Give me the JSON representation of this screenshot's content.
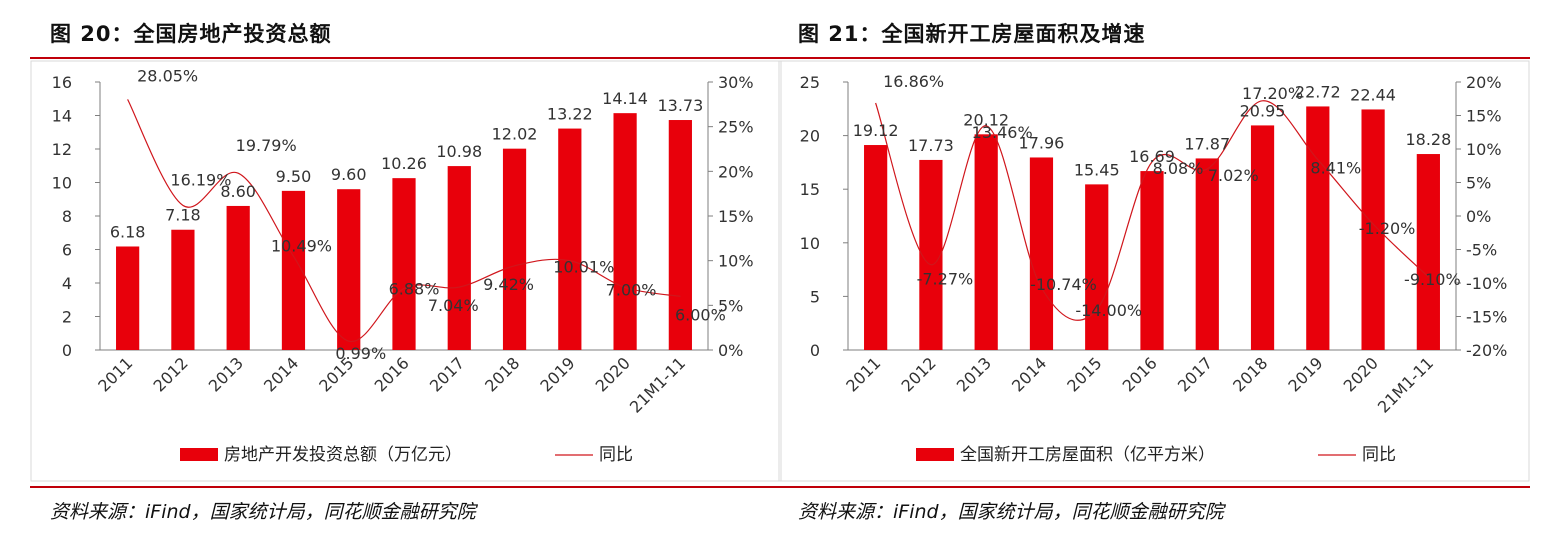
{
  "figures": [
    {
      "title": "图 20：全国房地产投资总额",
      "source": "资料来源：iFind，国家统计局，同花顺金融研究院"
    },
    {
      "title": "图 21：全国新开工房屋面积及增速",
      "source": "资料来源：iFind，国家统计局，同花顺金融研究院"
    }
  ],
  "colors": {
    "bar": "#e8000b",
    "line": "#d0161c",
    "rule": "#c0000a"
  },
  "chart_data": [
    {
      "type": "bar",
      "categories": [
        "2011",
        "2012",
        "2013",
        "2014",
        "2015",
        "2016",
        "2017",
        "2018",
        "2019",
        "2020",
        "21M1-11"
      ],
      "series": [
        {
          "name": "房地产开发投资总额（万亿元）",
          "type": "bar",
          "axis": "left",
          "values": [
            6.18,
            7.18,
            8.6,
            9.5,
            9.6,
            10.26,
            10.98,
            12.02,
            13.22,
            14.14,
            13.73
          ],
          "labels": [
            "6.18",
            "7.18",
            "8.60",
            "9.50",
            "9.60",
            "10.26",
            "10.98",
            "12.02",
            "13.22",
            "14.14",
            "13.73"
          ]
        },
        {
          "name": "同比",
          "type": "line",
          "axis": "right",
          "values": [
            28.05,
            16.19,
            19.79,
            10.49,
            0.99,
            6.88,
            7.04,
            9.42,
            10.01,
            7.0,
            6.0
          ],
          "labels": [
            "28.05%",
            "16.19%",
            "19.79%",
            "10.49%",
            "0.99%",
            "6.88%",
            "7.04%",
            "9.42%",
            "10.01%",
            "7.00%",
            "6.00%"
          ]
        }
      ],
      "y_left": {
        "min": 0,
        "max": 16,
        "ticks": [
          "0",
          "2",
          "4",
          "6",
          "8",
          "10",
          "12",
          "14",
          "16"
        ]
      },
      "y_right": {
        "min": 0,
        "max": 30,
        "ticks": [
          "0%",
          "5%",
          "10%",
          "15%",
          "20%",
          "25%",
          "30%"
        ]
      },
      "grid": false,
      "legend": "bottom"
    },
    {
      "type": "bar",
      "categories": [
        "2011",
        "2012",
        "2013",
        "2014",
        "2015",
        "2016",
        "2017",
        "2018",
        "2019",
        "2020",
        "21M1-11"
      ],
      "series": [
        {
          "name": "全国新开工房屋面积（亿平方米）",
          "type": "bar",
          "axis": "left",
          "values": [
            19.12,
            17.73,
            20.12,
            17.96,
            15.45,
            16.69,
            17.87,
            20.95,
            22.72,
            22.44,
            18.28
          ],
          "labels": [
            "19.12",
            "17.73",
            "20.12",
            "17.96",
            "15.45",
            "16.69",
            "17.87",
            "20.95",
            "22.72",
            "22.44",
            "18.28"
          ]
        },
        {
          "name": "同比",
          "type": "line",
          "axis": "right",
          "values": [
            16.86,
            -7.27,
            13.46,
            -10.74,
            -14.0,
            8.08,
            7.02,
            17.2,
            8.41,
            -1.2,
            -9.1
          ],
          "labels": [
            "16.86%",
            "-7.27%",
            "13.46%",
            "-10.74%",
            "-14.00%",
            "8.08%",
            "7.02%",
            "17.20%",
            "8.41%",
            "-1.20%",
            "-9.10%"
          ]
        }
      ],
      "y_left": {
        "min": 0,
        "max": 25,
        "ticks": [
          "0",
          "5",
          "10",
          "15",
          "20",
          "25"
        ]
      },
      "y_right": {
        "min": -20,
        "max": 20,
        "ticks": [
          "-20%",
          "-15%",
          "-10%",
          "-5%",
          "0%",
          "5%",
          "10%",
          "15%",
          "20%"
        ]
      },
      "grid": false,
      "legend": "bottom"
    }
  ]
}
